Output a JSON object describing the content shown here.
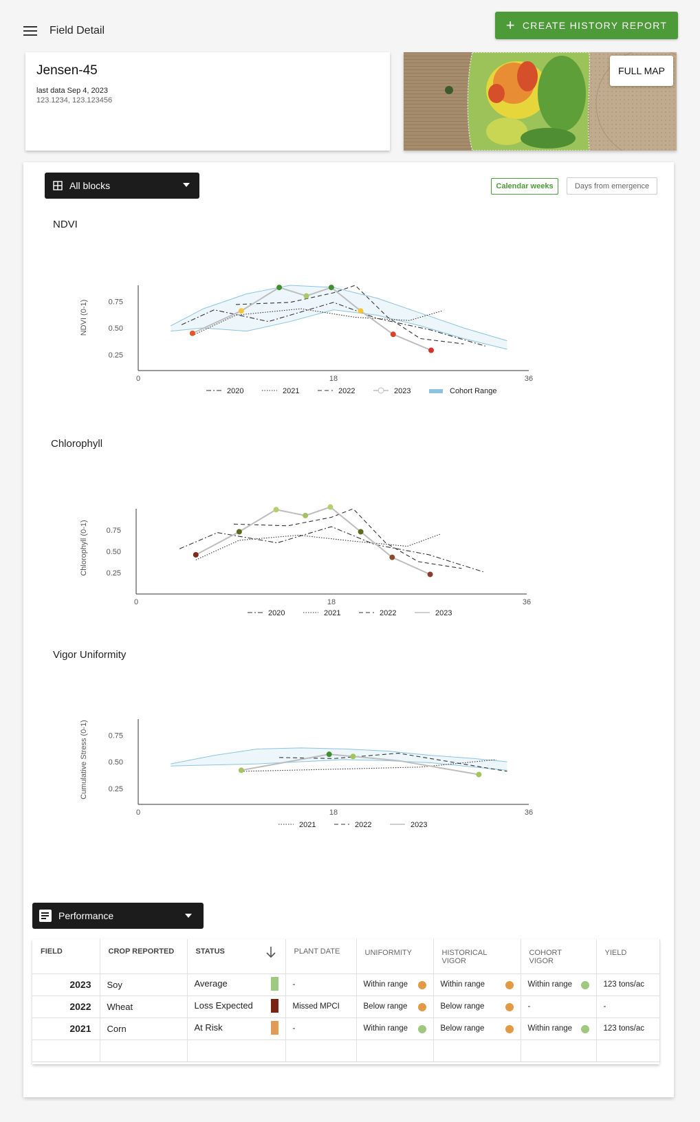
{
  "header": {
    "title": "Field Detail",
    "create_report_label": "CREATE HISTORY REPORT"
  },
  "field": {
    "name": "Jensen-45",
    "last_data": "last data Sep 4, 2023",
    "coords": "123.1234, 123.123456"
  },
  "map": {
    "full_map_label": "FULL MAP"
  },
  "controls": {
    "blocks_label": "All blocks",
    "calendar_weeks_label": "Calendar weeks",
    "days_from_emergence_label": "Days from emergence"
  },
  "charts": {
    "ndvi": {
      "title": "NDVI",
      "ylabel": "NDVI (0-1)"
    },
    "chlorophyll": {
      "title": "Chlorophyll",
      "ylabel": "Chlorophyll (0-1)"
    },
    "vigor": {
      "title": "Vigor Uniformity",
      "ylabel": "Cumulative Stress (0-1)"
    }
  },
  "chart_data": [
    {
      "type": "line",
      "title": "NDVI",
      "ylabel": "NDVI (0-1)",
      "xlim": [
        0,
        36
      ],
      "xticks": [
        "0",
        "18",
        "36"
      ],
      "yticks": [
        "0.25",
        "0.50",
        "0.75"
      ],
      "ylim": [
        0.1,
        0.9
      ],
      "legend": [
        "2020",
        "2021",
        "2022",
        "2023",
        "Cohort Range"
      ],
      "series": [
        {
          "name": "2020",
          "style": "dashdot",
          "x": [
            4,
            7,
            12,
            18,
            22,
            27,
            32
          ],
          "y": [
            0.53,
            0.67,
            0.56,
            0.74,
            0.59,
            0.48,
            0.33
          ]
        },
        {
          "name": "2021",
          "style": "dotted",
          "x": [
            5,
            9,
            15,
            20,
            25,
            28
          ],
          "y": [
            0.43,
            0.62,
            0.68,
            0.6,
            0.57,
            0.66
          ]
        },
        {
          "name": "2022",
          "style": "dashed",
          "x": [
            9,
            14,
            18,
            20,
            23,
            26,
            30
          ],
          "y": [
            0.72,
            0.74,
            0.83,
            0.9,
            0.6,
            0.4,
            0.35
          ]
        },
        {
          "name": "2023",
          "style": "solid",
          "x": [
            5,
            9.5,
            13,
            15.5,
            17.8,
            20.5,
            23.5,
            27
          ],
          "y": [
            0.45,
            0.66,
            0.88,
            0.8,
            0.88,
            0.66,
            0.44,
            0.29
          ],
          "point_colors": [
            "#e2572b",
            "#f5c43a",
            "#3f8f2e",
            "#a6c969",
            "#3f8f2e",
            "#f5c43a",
            "#d7422a",
            "#d7322a"
          ]
        },
        {
          "name": "Cohort Range",
          "style": "band",
          "x": [
            3,
            6,
            10,
            14,
            18,
            22,
            26,
            30,
            34
          ],
          "upper": [
            0.52,
            0.68,
            0.82,
            0.9,
            0.88,
            0.78,
            0.64,
            0.5,
            0.38
          ],
          "lower": [
            0.47,
            0.5,
            0.47,
            0.56,
            0.67,
            0.62,
            0.52,
            0.4,
            0.3
          ]
        }
      ]
    },
    {
      "type": "line",
      "title": "Chlorophyll",
      "ylabel": "Chlorophyll (0-1)",
      "xlim": [
        0,
        36
      ],
      "xticks": [
        "0",
        "18",
        "36"
      ],
      "yticks": [
        "0.25",
        "0.50",
        "0.75"
      ],
      "ylim": [
        0.0,
        1.0
      ],
      "legend": [
        "2020",
        "2021",
        "2022",
        "2023"
      ],
      "series": [
        {
          "name": "2020",
          "style": "dashdot",
          "x": [
            4,
            7.5,
            13,
            18,
            22,
            27,
            32
          ],
          "y": [
            0.53,
            0.72,
            0.6,
            0.79,
            0.58,
            0.46,
            0.26
          ]
        },
        {
          "name": "2021",
          "style": "dotted",
          "x": [
            5.5,
            9.5,
            15,
            20,
            25,
            28
          ],
          "y": [
            0.4,
            0.63,
            0.69,
            0.62,
            0.56,
            0.7
          ]
        },
        {
          "name": "2022",
          "style": "dashed",
          "x": [
            9,
            14,
            18,
            20,
            23,
            26,
            30
          ],
          "y": [
            0.82,
            0.8,
            0.9,
            1.0,
            0.6,
            0.38,
            0.3
          ]
        },
        {
          "name": "2023",
          "style": "solid",
          "x": [
            5.5,
            9.5,
            12.9,
            15.6,
            17.9,
            20.7,
            23.6,
            27.1
          ],
          "y": [
            0.46,
            0.73,
            0.99,
            0.92,
            1.02,
            0.73,
            0.43,
            0.23
          ],
          "point_colors": [
            "#7e2a1b",
            "#5b6a1f",
            "#b5cf6d",
            "#a6c064",
            "#b5cf6d",
            "#5b6a1f",
            "#8a4a2e",
            "#8a3e2b"
          ]
        }
      ]
    },
    {
      "type": "line",
      "title": "Vigor Uniformity",
      "ylabel": "Cumulative Stress (0-1)",
      "xlim": [
        0,
        36
      ],
      "xticks": [
        "0",
        "18",
        "36"
      ],
      "yticks": [
        "0.25",
        "0.50",
        "0.75"
      ],
      "ylim": [
        0.1,
        0.9
      ],
      "legend": [
        "2021",
        "2022",
        "2023"
      ],
      "series": [
        {
          "name": "2021",
          "style": "dotted",
          "x": [
            9.5,
            18,
            26,
            33
          ],
          "y": [
            0.41,
            0.43,
            0.45,
            0.52
          ]
        },
        {
          "name": "2022",
          "style": "dashed",
          "x": [
            13,
            18,
            24,
            34
          ],
          "y": [
            0.54,
            0.53,
            0.58,
            0.41
          ]
        },
        {
          "name": "2023",
          "style": "solid",
          "x": [
            9.5,
            17.6,
            19.8,
            24,
            31.4
          ],
          "y": [
            0.42,
            0.57,
            0.55,
            0.51,
            0.38
          ],
          "point_colors": [
            "#a3c45e",
            "#3f8f2e",
            "#a3c45e",
            null,
            "#a3c45e"
          ]
        },
        {
          "name": "Cohort Range",
          "style": "band",
          "x": [
            3,
            7,
            11,
            15,
            19,
            23,
            27,
            31,
            34
          ],
          "upper": [
            0.48,
            0.56,
            0.62,
            0.63,
            0.62,
            0.6,
            0.56,
            0.53,
            0.5
          ],
          "lower": [
            0.46,
            0.47,
            0.48,
            0.5,
            0.52,
            0.51,
            0.49,
            0.45,
            0.42
          ]
        }
      ]
    }
  ],
  "performance": {
    "select_label": "Performance",
    "columns": [
      "FIELD",
      "CROP REPORTED",
      "STATUS",
      "PLANT DATE",
      "UNIFORMITY",
      "HISTORICAL VIGOR",
      "COHORT VIGOR",
      "YIELD"
    ],
    "rows": [
      {
        "field": "2023",
        "crop": "Soy",
        "status": "Average",
        "status_color": "#9ec97e",
        "plant_date": "-",
        "uniformity": "Within range",
        "uniformity_color": "#e29a45",
        "hist_vigor": "Within range",
        "hist_color": "#e29a45",
        "cohort_vigor": "Within range",
        "cohort_color": "#9ec97e",
        "yield": "123 tons/ac"
      },
      {
        "field": "2022",
        "crop": "Wheat",
        "status": "Loss Expected",
        "status_color": "#7a2414",
        "plant_date": "Missed MPCI",
        "uniformity": "Below range",
        "uniformity_color": "#e29a45",
        "hist_vigor": "Below range",
        "hist_color": "#e29a45",
        "cohort_vigor": "-",
        "cohort_color": "",
        "yield": "-"
      },
      {
        "field": "2021",
        "crop": "Corn",
        "status": "At Risk",
        "status_color": "#e29a58",
        "plant_date": "-",
        "uniformity": "Within range",
        "uniformity_color": "#9ec97e",
        "hist_vigor": "Below range",
        "hist_color": "#e29a45",
        "cohort_vigor": "Within range",
        "cohort_color": "#9ec97e",
        "yield": "123 tons/ac"
      }
    ]
  },
  "colors": {
    "accent": "#4c9a38",
    "dark": "#1c1c1c",
    "cohort_band": "#8cc3e0"
  }
}
